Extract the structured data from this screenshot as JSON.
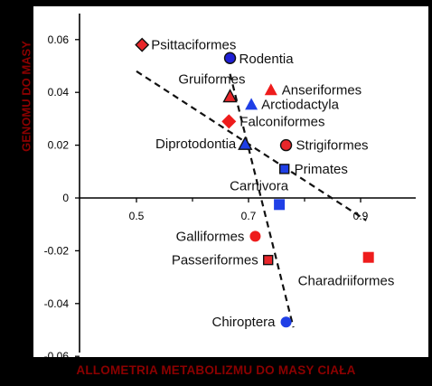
{
  "chart_data": {
    "type": "scatter",
    "xlabel": "ALLOMETRIA METABOLIZMU DO MASY CIAŁA",
    "ylabel": "GENOMU DO MASY",
    "xlim": [
      0.39,
      0.98
    ],
    "ylim": [
      -0.06,
      0.07
    ],
    "x_ticks": [
      {
        "value": 0.5,
        "label": "0.5"
      },
      {
        "value": 0.7,
        "label": "0.7"
      },
      {
        "value": 0.9,
        "label": "0.9"
      }
    ],
    "y_ticks": [
      {
        "value": 0.06,
        "label": "0.06"
      },
      {
        "value": 0.04,
        "label": "0.04"
      },
      {
        "value": 0.02,
        "label": "0.02"
      },
      {
        "value": 0,
        "label": "0"
      },
      {
        "value": -0.02,
        "label": "-0.02"
      },
      {
        "value": -0.04,
        "label": "-0.04"
      },
      {
        "value": -0.06,
        "label": "-0.06"
      }
    ],
    "points": [
      {
        "label": "Psittaciformes",
        "x": 0.51,
        "y": 0.058,
        "marker": "diamond",
        "fill": "#e8262a",
        "outline": true
      },
      {
        "label": "Rodentia",
        "x": 0.667,
        "y": 0.053,
        "marker": "circle",
        "fill": "#1f1fd6",
        "outline": true
      },
      {
        "label": "Gruiformes",
        "x": 0.667,
        "y": 0.0385,
        "marker": "triangle",
        "fill": "#e8262a",
        "outline": true
      },
      {
        "label": "Anseriformes",
        "x": 0.74,
        "y": 0.041,
        "marker": "triangle",
        "fill": "#ee1c1c",
        "outline": false
      },
      {
        "label": "Arctiodactyla",
        "x": 0.705,
        "y": 0.0355,
        "marker": "triangle",
        "fill": "#1f3fe6",
        "outline": false
      },
      {
        "label": "Falconiformes",
        "x": 0.665,
        "y": 0.029,
        "marker": "diamond",
        "fill": "#ee1c1c",
        "outline": false
      },
      {
        "label": "Strigiformes",
        "x": 0.767,
        "y": 0.02,
        "marker": "circle",
        "fill": "#e8262a",
        "outline": true
      },
      {
        "label": "Diprotodontia",
        "x": 0.694,
        "y": 0.0205,
        "marker": "triangle",
        "fill": "#1f3fe6",
        "outline": true
      },
      {
        "label": "Primates",
        "x": 0.764,
        "y": 0.011,
        "marker": "square",
        "fill": "#1f3fe6",
        "outline": true
      },
      {
        "label": "Carnivora",
        "x": 0.755,
        "y": -0.0025,
        "marker": "square",
        "fill": "#1f3fe6",
        "outline": false
      },
      {
        "label": "Galliformes",
        "x": 0.712,
        "y": -0.0145,
        "marker": "circle",
        "fill": "#ee1c1c",
        "outline": false
      },
      {
        "label": "Passeriformes",
        "x": 0.735,
        "y": -0.0235,
        "marker": "square",
        "fill": "#e8262a",
        "outline": true
      },
      {
        "label": "Charadriiformes",
        "x": 0.914,
        "y": -0.0225,
        "marker": "square",
        "fill": "#ee1c1c",
        "outline": false
      },
      {
        "label": "Chiroptera",
        "x": 0.767,
        "y": -0.047,
        "marker": "circle",
        "fill": "#1f3fe6",
        "outline": false
      }
    ],
    "trend_lines": [
      {
        "style": "dashed",
        "x1": 0.5,
        "y1": 0.048,
        "x2": 0.91,
        "y2": -0.0085
      },
      {
        "style": "dashed",
        "x1": 0.667,
        "y1": 0.047,
        "x2": 0.78,
        "y2": -0.049
      }
    ],
    "grid": false,
    "legend": "none"
  }
}
